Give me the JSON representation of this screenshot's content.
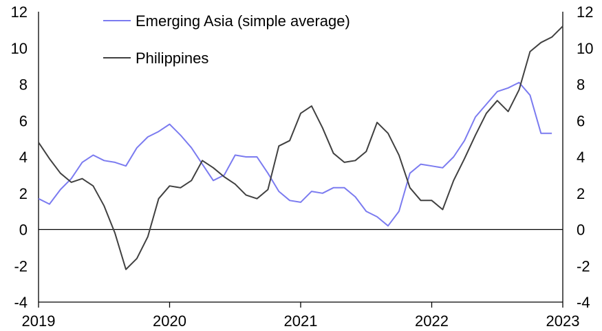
{
  "chart_data": {
    "type": "line",
    "title": "",
    "xlabel": "",
    "ylabel": "",
    "ylim": [
      -4,
      12
    ],
    "y_ticks": [
      "-4",
      "-2",
      "0",
      "2",
      "4",
      "6",
      "8",
      "10",
      "12"
    ],
    "x_ticks": [
      "2019",
      "2020",
      "2021",
      "2022",
      "2023"
    ],
    "x_tick_values": [
      0,
      12,
      24,
      36,
      48
    ],
    "legend_position": "top-left",
    "series": [
      {
        "name": "Emerging Asia (simple average)",
        "color": "#7b7bf0",
        "values": [
          1.7,
          1.4,
          2.2,
          2.8,
          3.7,
          4.1,
          3.8,
          3.7,
          3.5,
          4.5,
          5.1,
          5.4,
          5.8,
          5.2,
          4.5,
          3.6,
          2.7,
          3.0,
          4.1,
          4.0,
          4.0,
          3.1,
          2.1,
          1.6,
          1.5,
          2.1,
          2.0,
          2.3,
          2.3,
          1.8,
          1.0,
          0.7,
          0.2,
          1.0,
          3.1,
          3.6,
          3.5,
          3.4,
          4.0,
          4.9,
          6.2,
          6.9,
          7.6,
          7.8,
          8.1,
          7.4,
          5.3,
          5.3
        ]
      },
      {
        "name": "Philippines",
        "color": "#404040",
        "values": [
          4.8,
          3.9,
          3.1,
          2.6,
          2.8,
          2.4,
          1.3,
          -0.2,
          -2.2,
          -1.6,
          -0.4,
          1.7,
          2.4,
          2.3,
          2.7,
          3.8,
          3.4,
          2.9,
          2.5,
          1.9,
          1.7,
          2.2,
          4.6,
          4.9,
          6.4,
          6.8,
          5.6,
          4.2,
          3.7,
          3.8,
          4.3,
          5.9,
          5.3,
          4.1,
          2.3,
          1.6,
          1.6,
          1.1,
          2.7,
          3.9,
          5.2,
          6.4,
          7.1,
          6.5,
          7.7,
          9.8,
          10.3,
          10.6,
          11.2
        ]
      }
    ]
  }
}
